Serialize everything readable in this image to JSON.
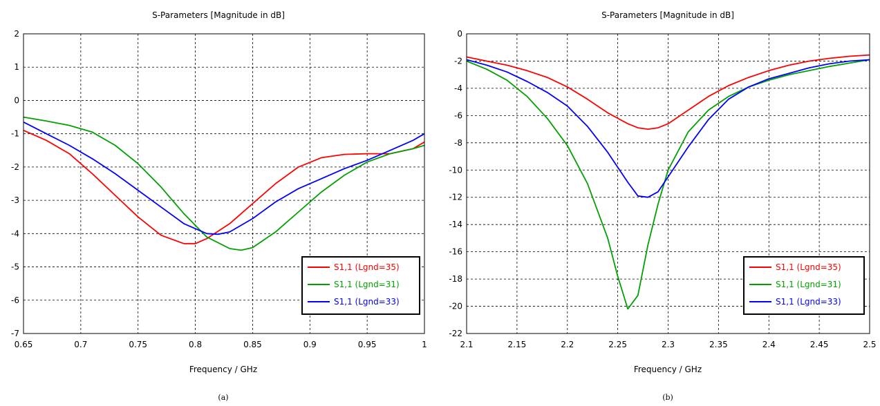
{
  "chart_data": [
    {
      "type": "line",
      "title": "S-Parameters [Magnitude in dB]",
      "xlabel": "Frequency / GHz",
      "ylabel": "",
      "caption": "(a)",
      "xlim": [
        0.65,
        1.0
      ],
      "ylim": [
        -7,
        2
      ],
      "xticks": [
        0.65,
        0.7,
        0.75,
        0.8,
        0.85,
        0.9,
        0.95,
        1
      ],
      "xtick_labels": [
        "0.65",
        "0.7",
        "0.75",
        "0.8",
        "0.85",
        "0.9",
        "0.95",
        "1"
      ],
      "yticks": [
        2,
        1,
        0,
        -1,
        -2,
        -3,
        -4,
        -5,
        -6,
        -7
      ],
      "ytick_labels": [
        "2",
        "1",
        "0",
        "-1",
        "-2",
        "-3",
        "-4",
        "-5",
        "-6",
        "-7"
      ],
      "grid": true,
      "legend_position": "bottom-right",
      "series": [
        {
          "name": "S1,1 (Lgnd=35)",
          "color": "#ff0000",
          "x": [
            0.65,
            0.67,
            0.69,
            0.71,
            0.73,
            0.75,
            0.77,
            0.79,
            0.8,
            0.81,
            0.83,
            0.85,
            0.87,
            0.89,
            0.91,
            0.93,
            0.95,
            0.97,
            0.99,
            1.0
          ],
          "y": [
            -0.9,
            -1.2,
            -1.6,
            -2.2,
            -2.85,
            -3.5,
            -4.05,
            -4.3,
            -4.3,
            -4.15,
            -3.7,
            -3.1,
            -2.5,
            -2.0,
            -1.72,
            -1.62,
            -1.6,
            -1.6,
            -1.45,
            -1.25
          ]
        },
        {
          "name": "S1,1 (Lgnd=31)",
          "color": "#00a000",
          "x": [
            0.65,
            0.67,
            0.69,
            0.71,
            0.73,
            0.75,
            0.77,
            0.79,
            0.81,
            0.83,
            0.84,
            0.85,
            0.87,
            0.89,
            0.91,
            0.93,
            0.95,
            0.97,
            0.99,
            1.0
          ],
          "y": [
            -0.5,
            -0.62,
            -0.75,
            -0.95,
            -1.35,
            -1.9,
            -2.6,
            -3.4,
            -4.1,
            -4.45,
            -4.5,
            -4.42,
            -3.95,
            -3.35,
            -2.75,
            -2.25,
            -1.85,
            -1.6,
            -1.45,
            -1.35
          ]
        },
        {
          "name": "S1,1 (Lgnd=33)",
          "color": "#0000ff",
          "x": [
            0.65,
            0.67,
            0.69,
            0.71,
            0.73,
            0.75,
            0.77,
            0.79,
            0.81,
            0.82,
            0.83,
            0.85,
            0.87,
            0.89,
            0.91,
            0.93,
            0.95,
            0.97,
            0.99,
            1.0
          ],
          "y": [
            -0.65,
            -1.0,
            -1.35,
            -1.75,
            -2.2,
            -2.7,
            -3.2,
            -3.7,
            -4.0,
            -4.02,
            -3.95,
            -3.55,
            -3.05,
            -2.65,
            -2.35,
            -2.05,
            -1.8,
            -1.5,
            -1.2,
            -1.0
          ]
        }
      ]
    },
    {
      "type": "line",
      "title": "S-Parameters [Magnitude in dB]",
      "xlabel": "Frequency / GHz",
      "ylabel": "",
      "caption": "(b)",
      "xlim": [
        2.1,
        2.5
      ],
      "ylim": [
        -22,
        0
      ],
      "xticks": [
        2.1,
        2.15,
        2.2,
        2.25,
        2.3,
        2.35,
        2.4,
        2.45,
        2.5
      ],
      "xtick_labels": [
        "2.1",
        "2.15",
        "2.2",
        "2.25",
        "2.3",
        "2.35",
        "2.4",
        "2.45",
        "2.5"
      ],
      "yticks": [
        0,
        -2,
        -4,
        -6,
        -8,
        -10,
        -12,
        -14,
        -16,
        -18,
        -20,
        -22
      ],
      "ytick_labels": [
        "0",
        "-2",
        "-4",
        "-6",
        "-8",
        "-10",
        "-12",
        "-14",
        "-16",
        "-18",
        "-20",
        "-22"
      ],
      "grid": true,
      "legend_position": "bottom-right",
      "series": [
        {
          "name": "S1,1 (Lgnd=35)",
          "color": "#ff0000",
          "x": [
            2.1,
            2.12,
            2.14,
            2.16,
            2.18,
            2.2,
            2.22,
            2.24,
            2.26,
            2.27,
            2.28,
            2.29,
            2.3,
            2.32,
            2.34,
            2.36,
            2.38,
            2.4,
            2.42,
            2.44,
            2.46,
            2.48,
            2.5
          ],
          "y": [
            -1.7,
            -2.0,
            -2.3,
            -2.7,
            -3.2,
            -3.9,
            -4.8,
            -5.8,
            -6.6,
            -6.9,
            -7.0,
            -6.9,
            -6.6,
            -5.6,
            -4.6,
            -3.8,
            -3.2,
            -2.7,
            -2.3,
            -2.0,
            -1.8,
            -1.65,
            -1.55
          ]
        },
        {
          "name": "S1,1 (Lgnd=31)",
          "color": "#00a000",
          "x": [
            2.1,
            2.12,
            2.14,
            2.16,
            2.18,
            2.2,
            2.22,
            2.24,
            2.25,
            2.26,
            2.27,
            2.28,
            2.29,
            2.3,
            2.32,
            2.34,
            2.36,
            2.38,
            2.4,
            2.42,
            2.44,
            2.46,
            2.48,
            2.5
          ],
          "y": [
            -2.0,
            -2.6,
            -3.4,
            -4.6,
            -6.2,
            -8.2,
            -11.0,
            -15.0,
            -17.8,
            -20.2,
            -19.2,
            -15.5,
            -12.5,
            -10.0,
            -7.2,
            -5.6,
            -4.6,
            -3.9,
            -3.4,
            -3.0,
            -2.7,
            -2.4,
            -2.15,
            -1.9
          ]
        },
        {
          "name": "S1,1 (Lgnd=33)",
          "color": "#0000ff",
          "x": [
            2.1,
            2.12,
            2.14,
            2.16,
            2.18,
            2.2,
            2.22,
            2.24,
            2.26,
            2.27,
            2.28,
            2.29,
            2.3,
            2.32,
            2.34,
            2.36,
            2.38,
            2.4,
            2.42,
            2.44,
            2.46,
            2.48,
            2.5
          ],
          "y": [
            -1.9,
            -2.3,
            -2.8,
            -3.5,
            -4.3,
            -5.3,
            -6.8,
            -8.7,
            -10.9,
            -11.9,
            -12.0,
            -11.6,
            -10.5,
            -8.3,
            -6.3,
            -4.8,
            -3.9,
            -3.3,
            -2.9,
            -2.5,
            -2.2,
            -2.0,
            -1.9
          ]
        }
      ]
    }
  ]
}
